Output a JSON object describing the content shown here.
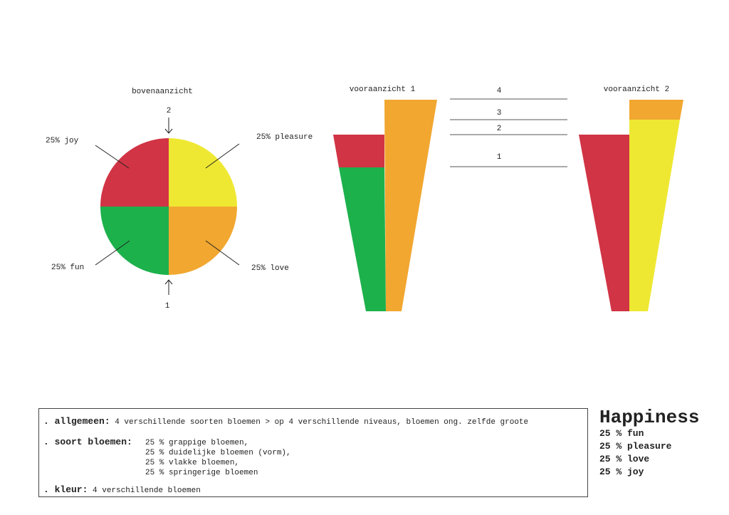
{
  "views": {
    "top_title": "bovenaanzicht",
    "front1_title": "vooraanzicht 1",
    "front2_title": "vooraanzicht 2",
    "arrow_top_label": "2",
    "arrow_bottom_label": "1",
    "pie_labels": {
      "joy": "25% joy",
      "pleasure": "25% pleasure",
      "fun": "25% fun",
      "love": "25% love"
    },
    "level_labels": [
      "4",
      "3",
      "2",
      "1"
    ]
  },
  "colors": {
    "joy": "#d13444",
    "pleasure": "#efe832",
    "fun": "#1db14c",
    "love": "#f1a730"
  },
  "info": {
    "allgemeen_key": ". allgemeen:",
    "allgemeen_text": "4 verschillende soorten bloemen > op 4 verschillende niveaus, bloemen ong. zelfde groote",
    "soort_key": ". soort bloemen:",
    "soort_items": [
      "25 % grappige bloemen,",
      "25 % duidelijke bloemen (vorm),",
      "25 % vlakke bloemen,",
      "25 % springerige bloemen"
    ],
    "kleur_key": ". kleur:",
    "kleur_text": "4 verschillende bloemen"
  },
  "legend": {
    "title": "Happiness",
    "items": [
      "25 % fun",
      "25 % pleasure",
      "25 % love",
      "25 % joy"
    ]
  }
}
